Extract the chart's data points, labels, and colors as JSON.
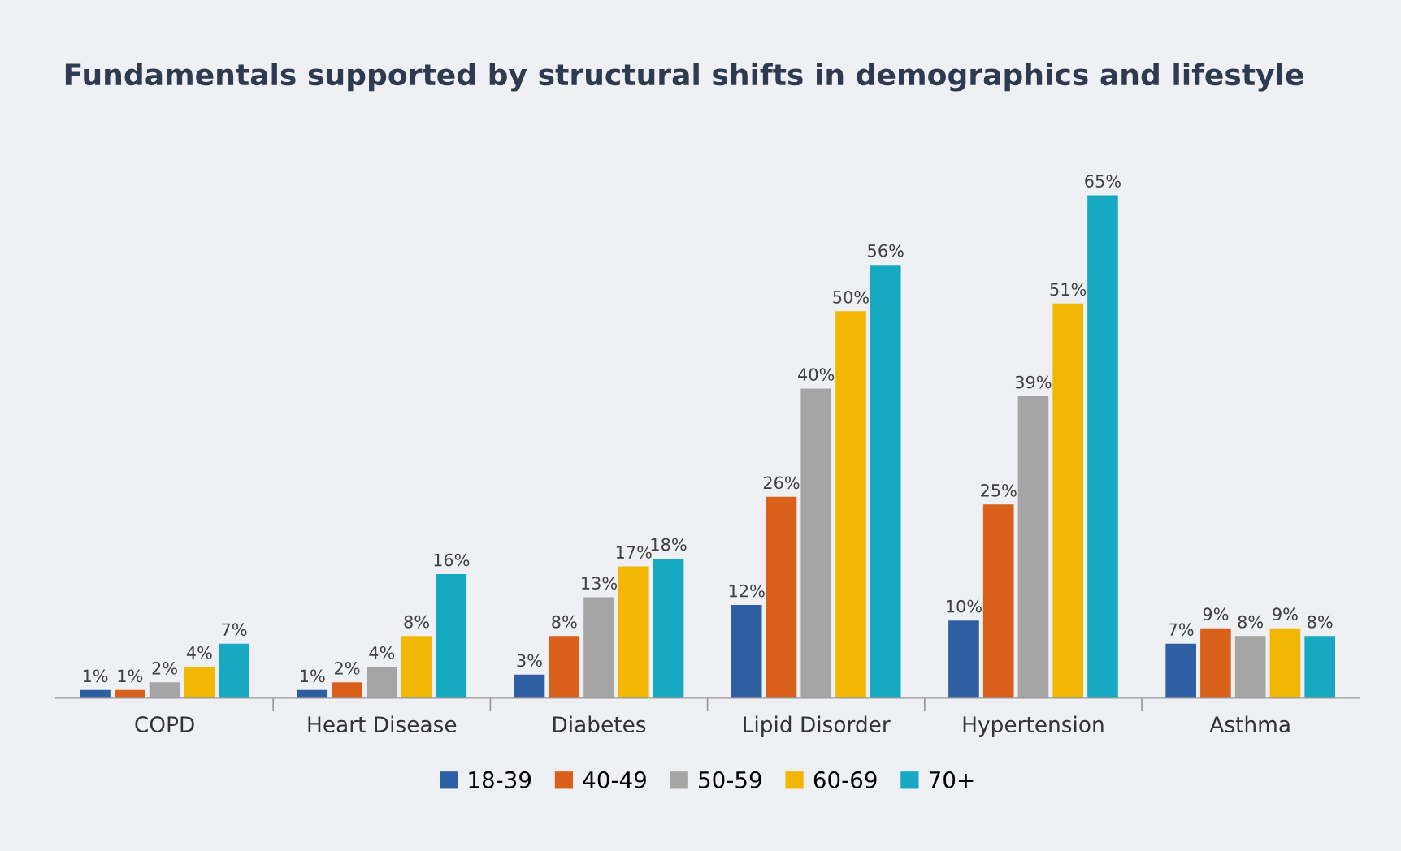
{
  "chart_data": {
    "type": "bar",
    "title": "Fundamentals supported by structural shifts in demographics and lifestyle",
    "categories": [
      "COPD",
      "Heart Disease",
      "Diabetes",
      "Lipid Disorder",
      "Hypertension",
      "Asthma"
    ],
    "series": [
      {
        "name": "18-39",
        "color": "#2e5fa3",
        "values": [
          1,
          1,
          3,
          12,
          10,
          7
        ],
        "value_labels": [
          "1%",
          "1%",
          "3%",
          "12%",
          "10%",
          "7%"
        ]
      },
      {
        "name": "40-49",
        "color": "#d9601a",
        "values": [
          1,
          2,
          8,
          26,
          25,
          9
        ],
        "value_labels": [
          "1%",
          "2%",
          "8%",
          "26%",
          "25%",
          "9%"
        ]
      },
      {
        "name": "50-59",
        "color": "#a5a5a5",
        "values": [
          2,
          4,
          13,
          40,
          39,
          8
        ],
        "value_labels": [
          "2%",
          "4%",
          "13%",
          "40%",
          "39%",
          "8%"
        ]
      },
      {
        "name": "60-69",
        "color": "#f2b705",
        "values": [
          4,
          8,
          17,
          50,
          51,
          9
        ],
        "value_labels": [
          "4%",
          "8%",
          "17%",
          "50%",
          "51%",
          "9%"
        ]
      },
      {
        "name": "70+",
        "color": "#17a9c1",
        "values": [
          7,
          16,
          18,
          56,
          65,
          8
        ],
        "value_labels": [
          "7%",
          "16%",
          "18%",
          "56%",
          "65%",
          "8%"
        ]
      }
    ],
    "legend": "bottom",
    "grid": false
  }
}
